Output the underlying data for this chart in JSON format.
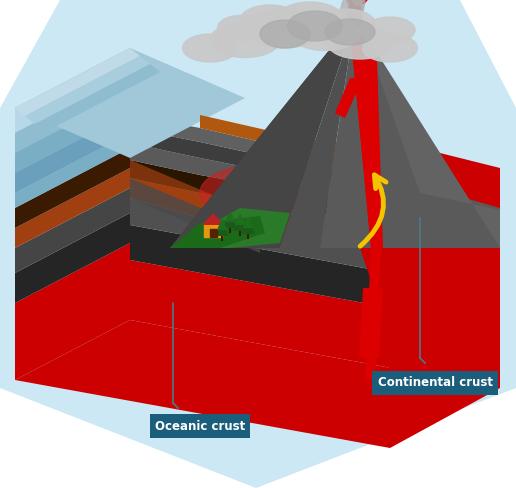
{
  "bg_color": "#ffffff",
  "sky_color": "#cce8f4",
  "label_box_color": "#1b5e7b",
  "label_text_color": "#ffffff",
  "label1": "Oceanic crust",
  "label2": "Continental crust",
  "lava_color": "#dd0000",
  "magma_glow": "#cc2222",
  "arrow_color": "#f5c400",
  "vol_dark": "#454545",
  "vol_mid": "#5a5a5a",
  "vol_light": "#6e6e6e",
  "ground_brown": "#a04010",
  "ground_orange": "#b05810",
  "ground_dark": "#2a1800",
  "ground_grey": "#5a5a5a",
  "mantle_red": "#cc0000",
  "ocean_blue1": "#a0c8d8",
  "ocean_blue2": "#7aaec4",
  "ocean_blue3": "#5898b8",
  "green1": "#2a7a2a",
  "green2": "#1a6a1a",
  "cloud_light": "#c8c8c8",
  "cloud_dark": "#aaaaaa"
}
